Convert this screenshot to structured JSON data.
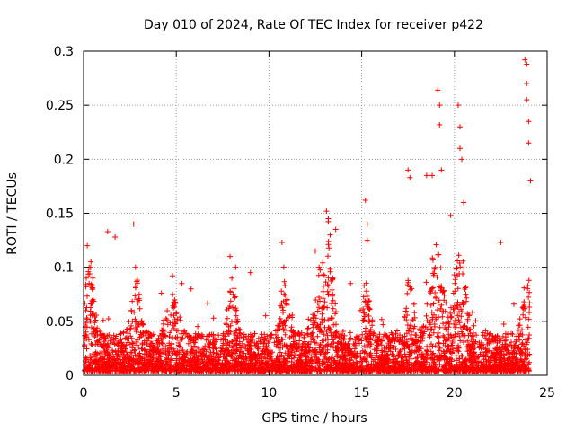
{
  "chart_data": {
    "type": "scatter",
    "title": "Day 010 of 2024, Rate Of TEC Index for receiver p422",
    "xlabel": "GPS time / hours",
    "ylabel": "ROTI / TECUs",
    "xlim": [
      0,
      25
    ],
    "ylim": [
      0,
      0.3
    ],
    "xticks": [
      0,
      5,
      10,
      15,
      20,
      25
    ],
    "xtick_labels": [
      "0",
      "5",
      "10",
      "15",
      "20",
      "25"
    ],
    "yticks": [
      0,
      0.05,
      0.1,
      0.15,
      0.2,
      0.25,
      0.3
    ],
    "ytick_labels": [
      "0",
      "0.05",
      "0.1",
      "0.15",
      "0.2",
      "0.25",
      "0.3"
    ],
    "grid": true,
    "marker": "+",
    "color": "#ff0000",
    "series": [
      {
        "name": "ROTI",
        "x": [
          0.2,
          0.3,
          0.3,
          0.4,
          0.5,
          1.3,
          1.7,
          2.7,
          2.8,
          2.9,
          3.0,
          4.2,
          4.8,
          5.3,
          5.8,
          7.9,
          8.0,
          8.2,
          9.0,
          10.7,
          10.8,
          12.5,
          12.7,
          13.1,
          13.2,
          13.3,
          13.6,
          14.4,
          15.2,
          15.3,
          15.3,
          17.5,
          17.6,
          18.5,
          18.8,
          19.1,
          19.2,
          19.2,
          19.3,
          19.8,
          20.2,
          20.3,
          20.3,
          20.4,
          20.5,
          22.5,
          23.8,
          23.9,
          23.9,
          23.9,
          24.0,
          24.0,
          24.1
        ],
        "y": [
          0.12,
          0.1,
          0.085,
          0.105,
          0.09,
          0.133,
          0.128,
          0.14,
          0.1,
          0.088,
          0.075,
          0.076,
          0.092,
          0.085,
          0.08,
          0.11,
          0.09,
          0.1,
          0.095,
          0.123,
          0.1,
          0.115,
          0.1,
          0.152,
          0.145,
          0.13,
          0.135,
          0.085,
          0.162,
          0.14,
          0.125,
          0.19,
          0.183,
          0.185,
          0.185,
          0.264,
          0.25,
          0.232,
          0.19,
          0.148,
          0.25,
          0.23,
          0.21,
          0.2,
          0.16,
          0.123,
          0.292,
          0.288,
          0.27,
          0.255,
          0.235,
          0.215,
          0.18
        ]
      }
    ]
  }
}
